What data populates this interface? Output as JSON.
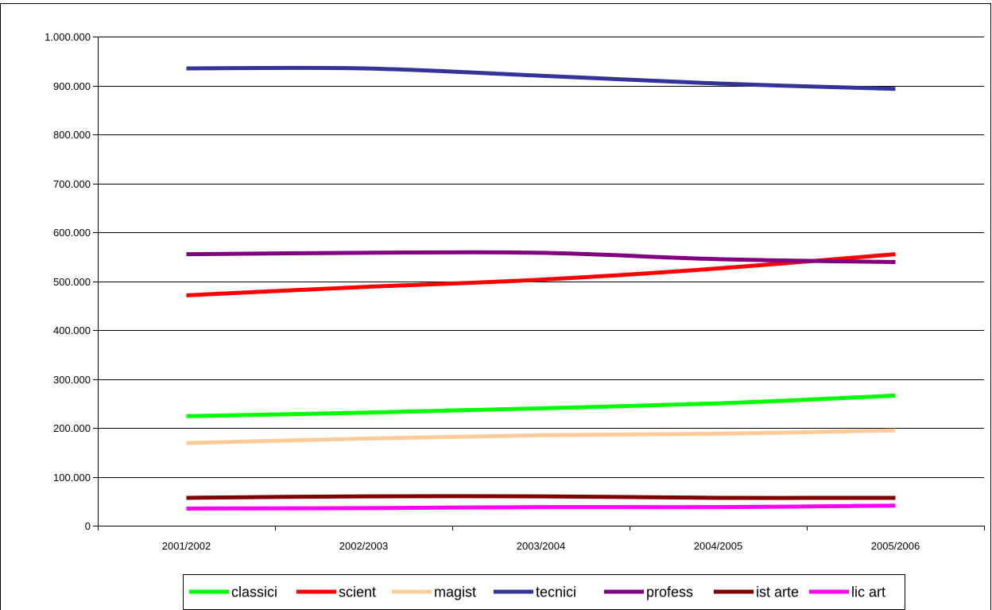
{
  "chart_data": {
    "type": "line",
    "title": "",
    "xlabel": "",
    "ylabel": "",
    "categories": [
      "2001/2002",
      "2002/2003",
      "2003/2004",
      "2004/2005",
      "2005/2006"
    ],
    "ylim": [
      0,
      1000000
    ],
    "y_ticks": [
      0,
      100000,
      200000,
      300000,
      400000,
      500000,
      600000,
      700000,
      800000,
      900000,
      1000000
    ],
    "y_tick_labels": [
      "0",
      "100.000",
      "200.000",
      "300.000",
      "400.000",
      "500.000",
      "600.000",
      "700.000",
      "800.000",
      "900.000",
      "1.000.000"
    ],
    "grid": "horizontal",
    "legend_position": "bottom",
    "series": [
      {
        "name": "classici",
        "color": "#00ff00",
        "values": [
          224000,
          231000,
          240000,
          250000,
          266000
        ]
      },
      {
        "name": "scient",
        "color": "#ff0000",
        "values": [
          471000,
          488000,
          503000,
          526000,
          555000
        ]
      },
      {
        "name": "magist",
        "color": "#ffcc99",
        "values": [
          169000,
          178000,
          185000,
          188000,
          195000
        ]
      },
      {
        "name": "tecnici",
        "color": "#333399",
        "values": [
          935000,
          935000,
          920000,
          904000,
          893000
        ]
      },
      {
        "name": "profess",
        "color": "#800080",
        "values": [
          555000,
          558000,
          558000,
          545000,
          539000
        ]
      },
      {
        "name": "ist arte",
        "color": "#800000",
        "values": [
          57000,
          60000,
          60000,
          57000,
          57000
        ]
      },
      {
        "name": "lic art",
        "color": "#ff00ff",
        "values": [
          35000,
          36000,
          38000,
          38000,
          41000
        ]
      }
    ]
  }
}
